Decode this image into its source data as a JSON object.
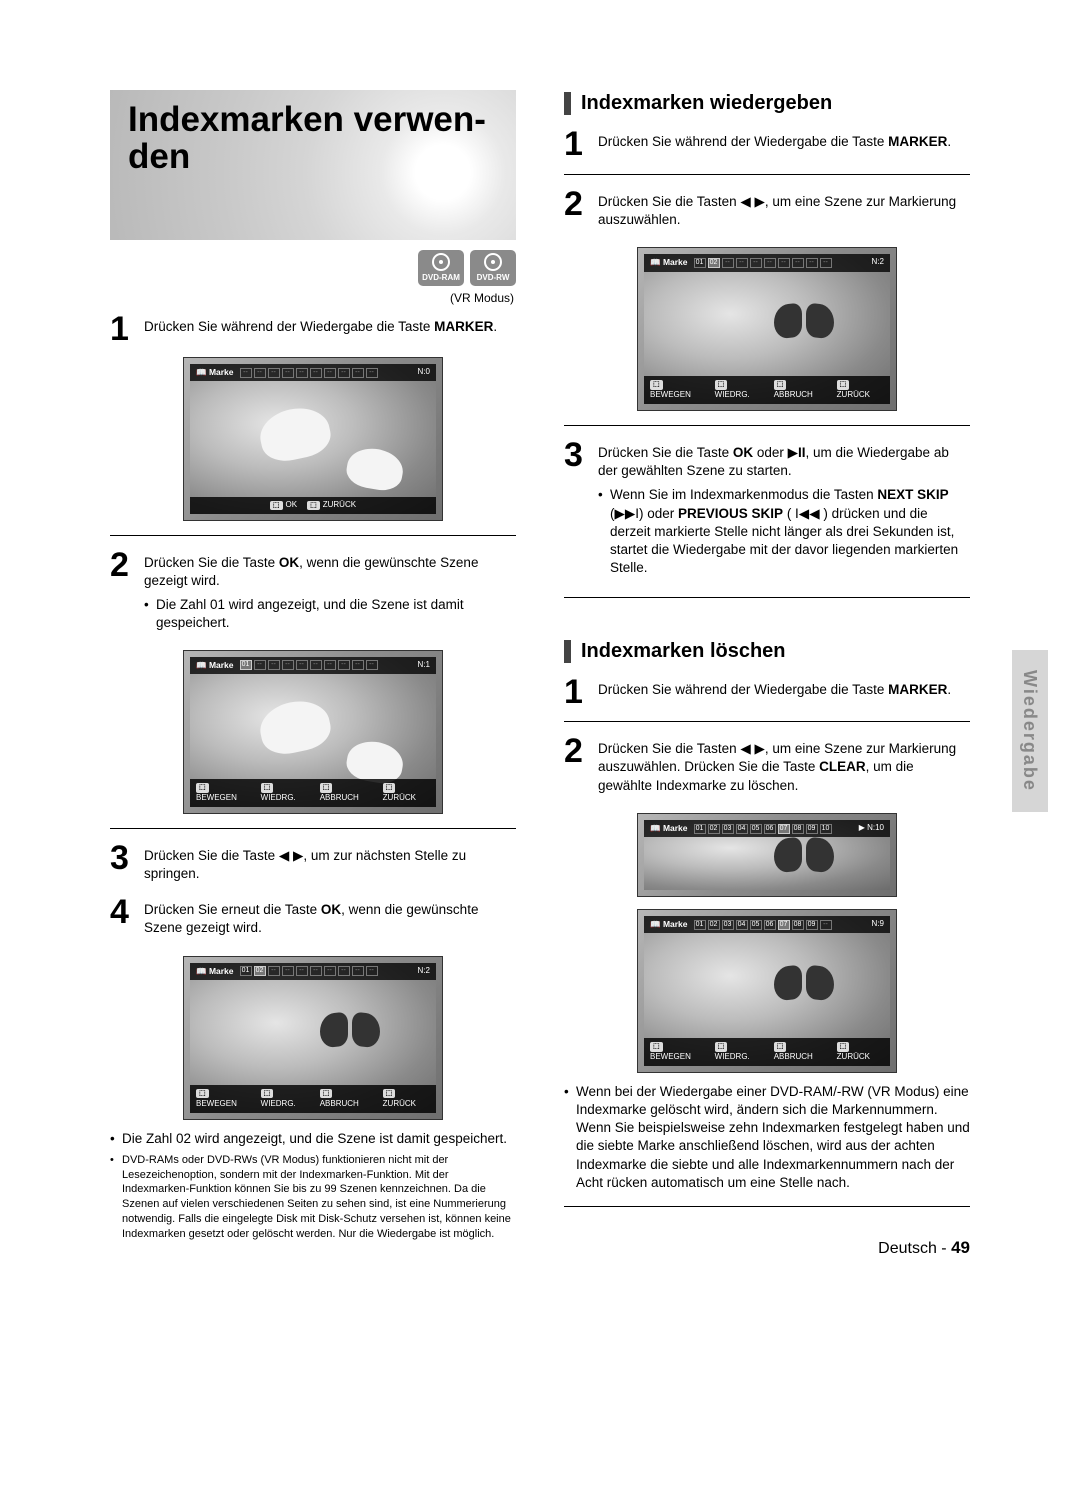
{
  "sideTab": "Wiedergabe",
  "footer": {
    "lang": "Deutsch",
    "sep": " - ",
    "page": "49"
  },
  "discs": {
    "a": "DVD-RAM",
    "b": "DVD-RW",
    "vr": "(VR Modus)"
  },
  "title": "Indexmarken verwen-\nden",
  "shotLabels": {
    "marke": "Marke",
    "ok": "OK",
    "zurueck": "ZURÜCK",
    "bewegen": "BEWEGEN",
    "wiedrg": "WIEDRG.",
    "abbruch": "ABBRUCH"
  },
  "shots": {
    "s1": {
      "slots": [
        "--",
        "--",
        "--",
        "--",
        "--",
        "--",
        "--",
        "--",
        "--",
        "--"
      ],
      "sel": -1,
      "n": "N:0",
      "controls": [
        "ok",
        "zurueck"
      ],
      "subject": "bird"
    },
    "s2": {
      "slots": [
        "01",
        "--",
        "--",
        "--",
        "--",
        "--",
        "--",
        "--",
        "--",
        "--"
      ],
      "sel": 0,
      "n": "N:1",
      "controls": [
        "bewegen",
        "wiedrg",
        "abbruch",
        "zurueck"
      ],
      "subject": "bird"
    },
    "s3": {
      "slots": [
        "01",
        "02",
        "--",
        "--",
        "--",
        "--",
        "--",
        "--",
        "--",
        "--"
      ],
      "sel": 1,
      "n": "N:2",
      "controls": [
        "bewegen",
        "wiedrg",
        "abbruch",
        "zurueck"
      ],
      "subject": "butterfly"
    },
    "s4": {
      "slots": [
        "01",
        "02",
        "--",
        "--",
        "--",
        "--",
        "--",
        "--",
        "--",
        "--"
      ],
      "sel": 1,
      "n": "N:2",
      "controls": [
        "bewegen",
        "wiedrg",
        "abbruch",
        "zurueck"
      ],
      "subject": "butterfly"
    },
    "s5": {
      "slots": [
        "01",
        "02",
        "03",
        "04",
        "05",
        "06",
        "07",
        "08",
        "09",
        "10"
      ],
      "sel": 6,
      "n": "▶ N:10",
      "controls": [],
      "subject": "butterfly"
    },
    "s6": {
      "slots": [
        "01",
        "02",
        "03",
        "04",
        "05",
        "06",
        "07",
        "08",
        "09",
        "--"
      ],
      "sel": 6,
      "n": "N:9",
      "controls": [
        "bewegen",
        "wiedrg",
        "abbruch",
        "zurueck"
      ],
      "subject": "butterfly"
    }
  },
  "left": {
    "step1": "Drücken Sie während der Wiedergabe die Taste <b>MARKER</b>.",
    "step2": "Drücken Sie die Taste <b>OK</b>, wenn die gewünschte Szene gezeigt wird.",
    "step2_b1": "Die Zahl 01 wird angezeigt, und die Szene ist damit gespeichert.",
    "step3": "Drücken Sie die Taste ◀ ▶, um zur nächsten Stelle zu springen.",
    "step4": "Drücken Sie erneut die Taste <b>OK</b>, wenn die gewünschte Szene gezeigt wird.",
    "step4_b1": "Die Zahl 02 wird angezeigt, und die Szene ist damit gespeichert.",
    "step4_b2": "DVD-RAMs oder DVD-RWs (VR Modus) funktionieren nicht mit der Lesezeichenoption, sondern mit der Indexmarken-Funktion. Mit der Indexmarken-Funktion können Sie bis zu 99 Szenen kennzeichnen. Da die Szenen auf vielen verschiedenen Seiten zu sehen sind, ist eine Nummerierung notwendig. Falls die eingelegte Disk mit Disk-Schutz versehen ist, können keine Indexmarken gesetzt oder gelöscht werden. Nur die Wiedergabe ist möglich."
  },
  "right": {
    "head1": "Indexmarken wiedergeben",
    "p1_1": "Drücken Sie während der Wiedergabe die Taste <b>MARKER</b>.",
    "p1_2": "Drücken Sie die Tasten ◀ ▶, um eine Szene zur Markierung auszuwählen.",
    "p1_3": "Drücken Sie die Taste <b>OK</b> oder ▶<b>II</b>, um die Wiedergabe ab der gewählten Szene zu starten.",
    "p1_3_b1": "Wenn Sie im Indexmarkenmodus die Tasten <b>NEXT SKIP</b> (▶▶I) oder <b>PREVIOUS SKIP</b> ( I◀◀ ) drücken und die derzeit markierte Stelle nicht länger als drei Sekunden ist, startet die Wiedergabe mit der davor liegenden markierten Stelle.",
    "head2": "Indexmarken löschen",
    "p2_1": "Drücken Sie während der Wiedergabe die Taste <b>MARKER</b>.",
    "p2_2": "Drücken Sie die Tasten ◀ ▶, um eine Szene zur Markierung auszuwählen. Drücken Sie die Taste <b>CLEAR</b>, um die gewählte Indexmarke zu löschen.",
    "p2_b1": "Wenn bei der Wiedergabe einer DVD-RAM/-RW (VR Modus) eine Indexmarke gelöscht wird, ändern sich die Markennummern. Wenn Sie beispielsweise zehn Indexmarken festgelegt haben und die siebte Marke anschließend löschen, wird aus der achten Indexmarke die siebte und alle Indexmarkennummern nach der Acht rücken automatisch um eine Stelle nach."
  }
}
